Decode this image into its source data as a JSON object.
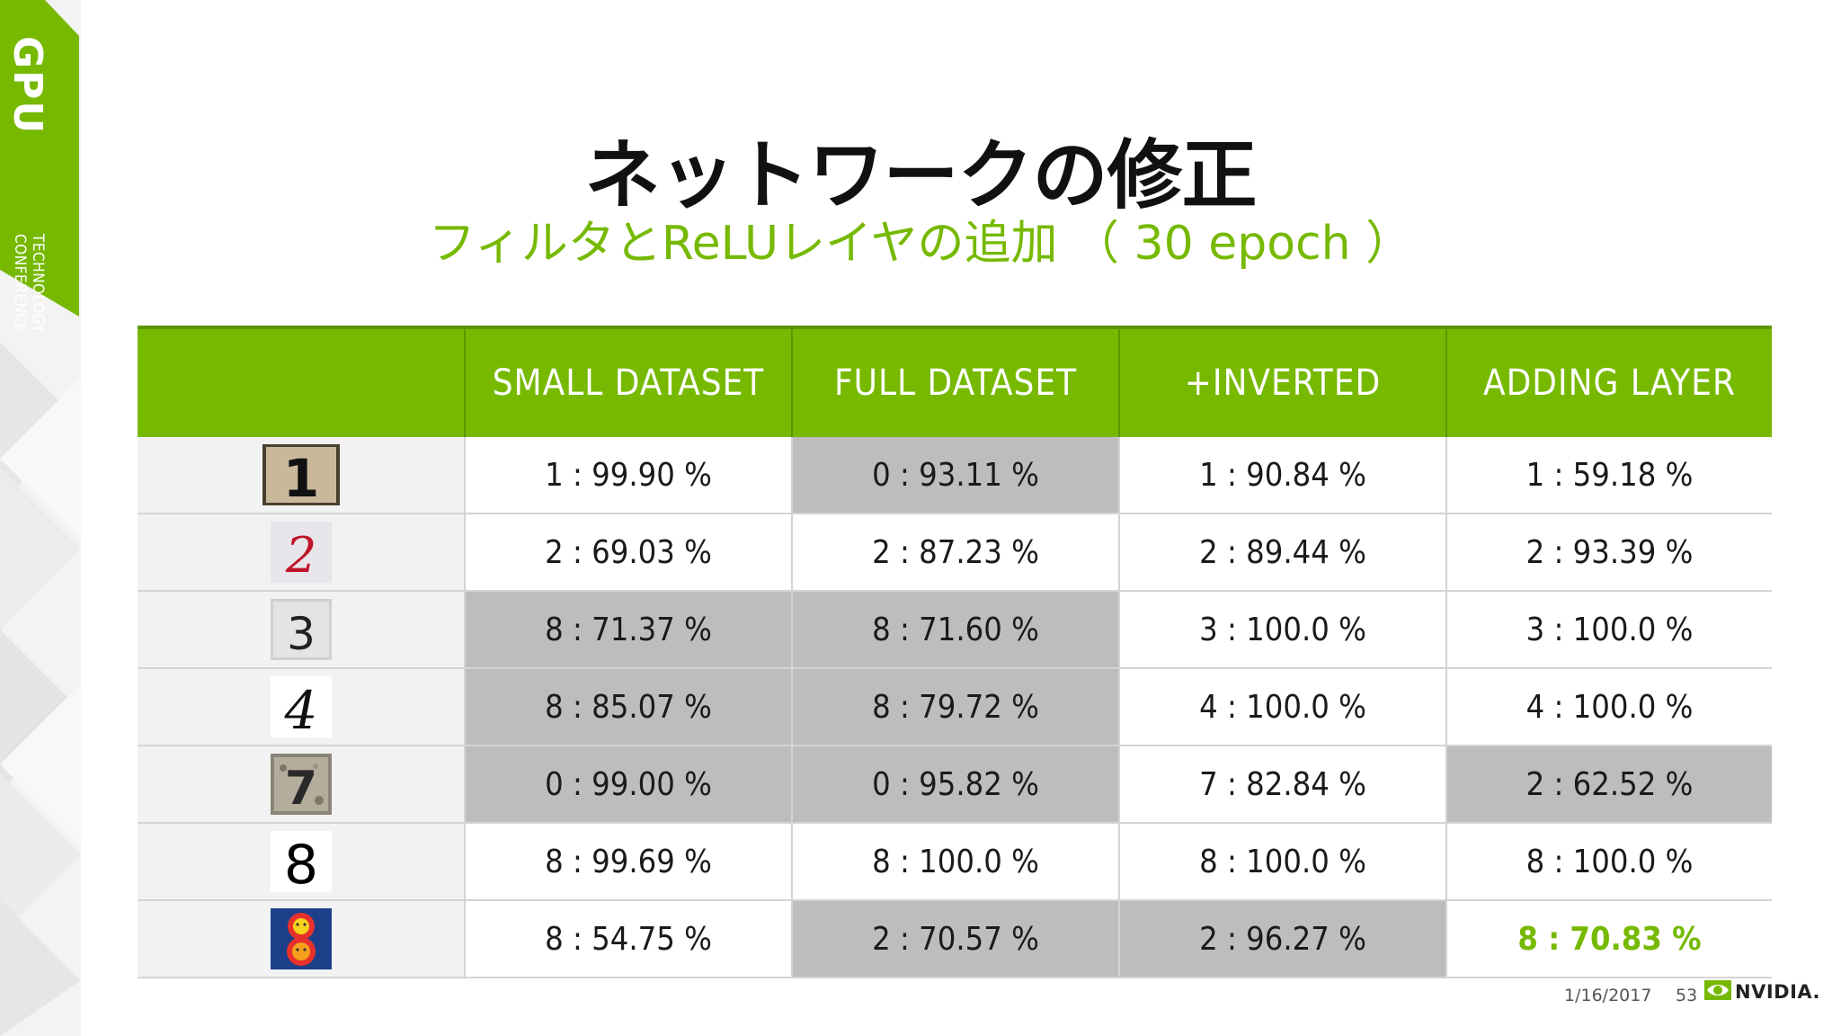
{
  "badge": {
    "big": "GPU",
    "line1": "TECHNOLOGY",
    "line2": "CONFERENCE"
  },
  "title": "ネットワークの修正",
  "subtitle": "フィルタとReLUレイヤの追加 （ 30 epoch ）",
  "colors": {
    "accent": "#76b900",
    "highlight": "#bdbdbd",
    "text": "#1a1a1a"
  },
  "table": {
    "headers": [
      "",
      "SMALL DATASET",
      "FULL DATASET",
      "+INVERTED",
      "ADDING LAYER"
    ],
    "rows": [
      {
        "image": "digit-1-photo",
        "cells": [
          "1 : 99.90 %",
          "0 : 93.11 %",
          "1 : 90.84 %",
          "1 : 59.18 %"
        ],
        "highlight": [
          false,
          true,
          false,
          false
        ]
      },
      {
        "image": "digit-2-handwritten-red",
        "cells": [
          "2 : 69.03 %",
          "2 : 87.23 %",
          "2 : 89.44 %",
          "2 : 93.39 %"
        ],
        "highlight": [
          false,
          false,
          false,
          false
        ]
      },
      {
        "image": "digit-3-embossed",
        "cells": [
          "8 : 71.37 %",
          "8 : 71.60 %",
          "3 : 100.0 %",
          "3 : 100.0 %"
        ],
        "highlight": [
          true,
          true,
          false,
          false
        ]
      },
      {
        "image": "digit-4-handwritten-black",
        "cells": [
          "8 : 85.07 %",
          "8 : 79.72 %",
          "4 : 100.0 %",
          "4 : 100.0 %"
        ],
        "highlight": [
          true,
          true,
          false,
          false
        ]
      },
      {
        "image": "digit-7-stone",
        "cells": [
          "0 : 99.00 %",
          "0 : 95.82 %",
          "7 : 82.84 %",
          "2 : 62.52 %"
        ],
        "highlight": [
          true,
          true,
          false,
          true
        ]
      },
      {
        "image": "digit-8-font",
        "cells": [
          "8 : 99.69 %",
          "8 : 100.0 %",
          "8 : 100.0 %",
          "8 : 100.0 %"
        ],
        "highlight": [
          false,
          false,
          false,
          false
        ]
      },
      {
        "image": "digit-8-smiley",
        "cells": [
          "8 : 54.75 %",
          "2 : 70.57 %",
          "2 : 96.27 %",
          "8 : 70.83 %"
        ],
        "highlight": [
          false,
          true,
          true,
          false
        ],
        "best": [
          false,
          false,
          false,
          true
        ]
      }
    ]
  },
  "thumbnails": {
    "one": "1",
    "two": "2",
    "three": "3",
    "four": "4",
    "seven": "7",
    "eight": "8"
  },
  "footer": {
    "date": "1/16/2017",
    "page": "53",
    "brand": "NVIDIA."
  }
}
